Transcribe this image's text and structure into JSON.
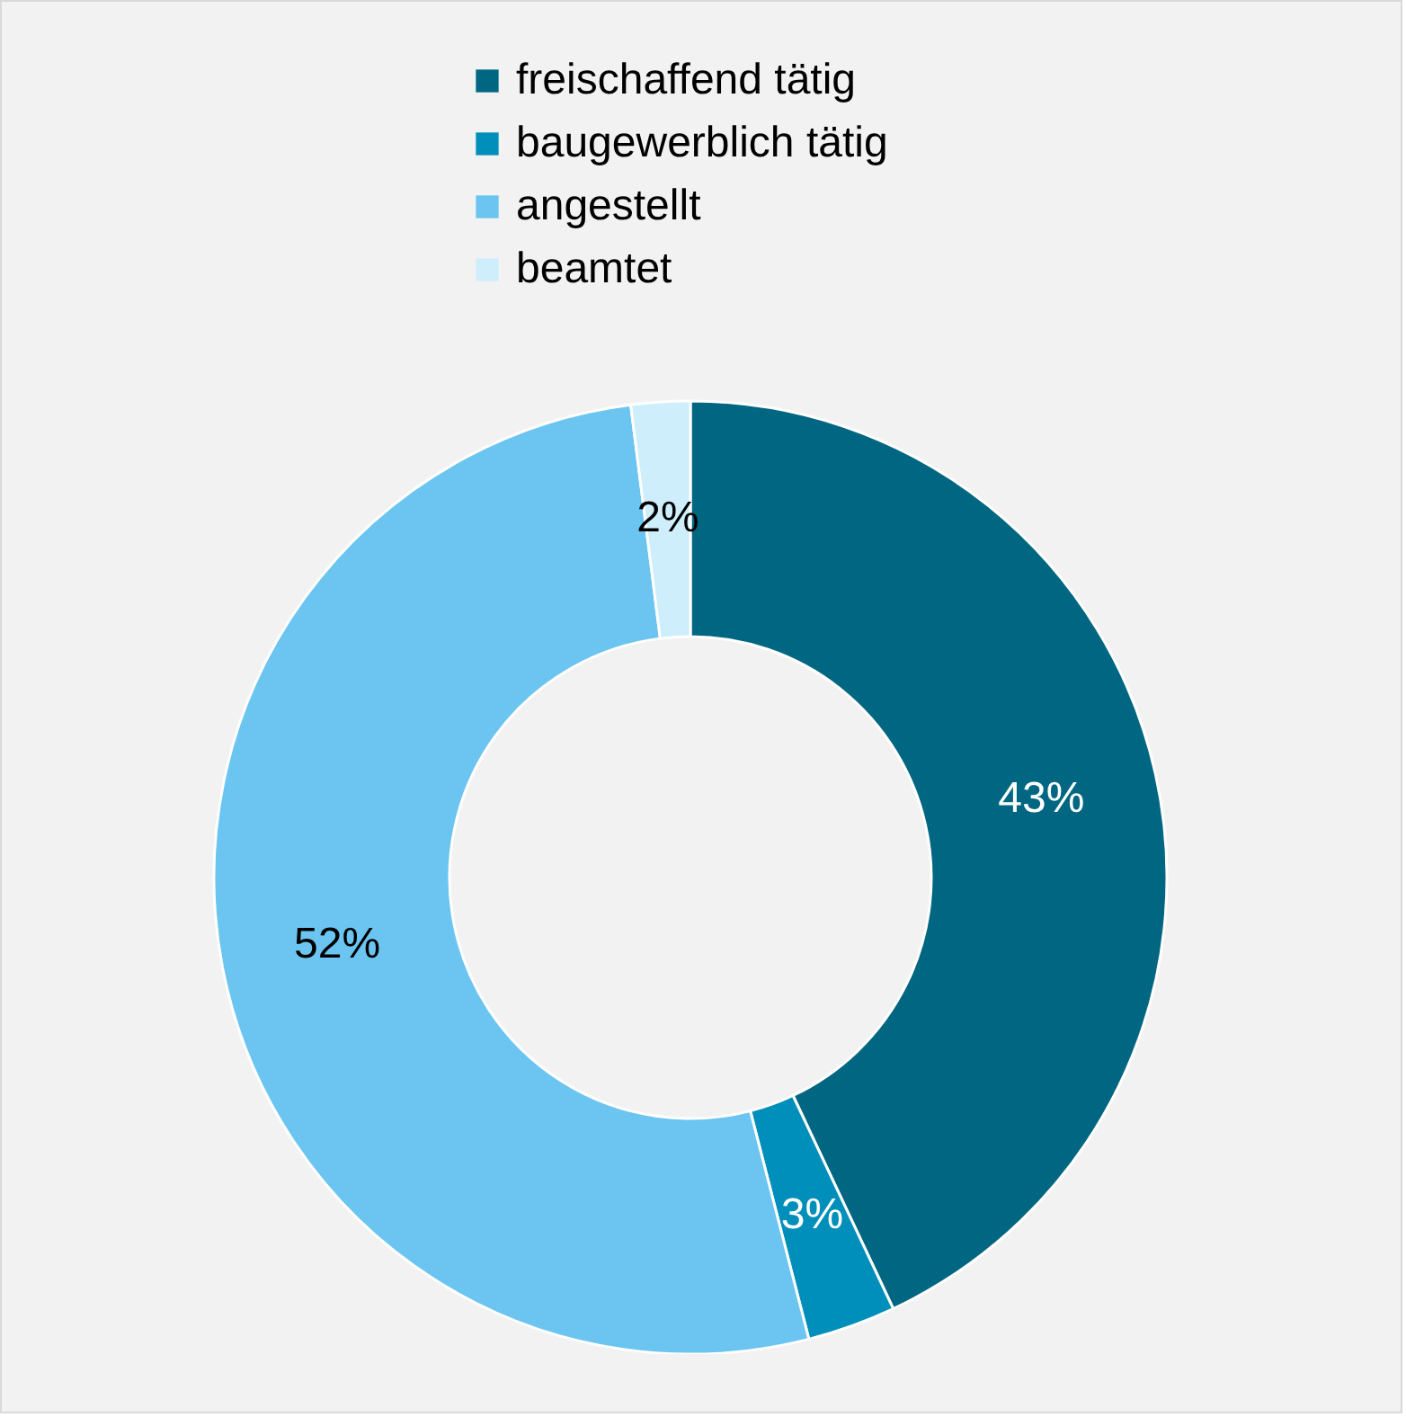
{
  "chart_data": {
    "type": "donut",
    "categories": [
      "freischaffend tätig",
      "baugewerblich tätig",
      "angestellt",
      "beamtet"
    ],
    "values": [
      43,
      3,
      52,
      2
    ],
    "colors": [
      "#006682",
      "#008fba",
      "#6bc5f0",
      "#cdeefa"
    ],
    "value_labels": [
      "43%",
      "3%",
      "52%",
      "2%"
    ],
    "legend": "top"
  }
}
